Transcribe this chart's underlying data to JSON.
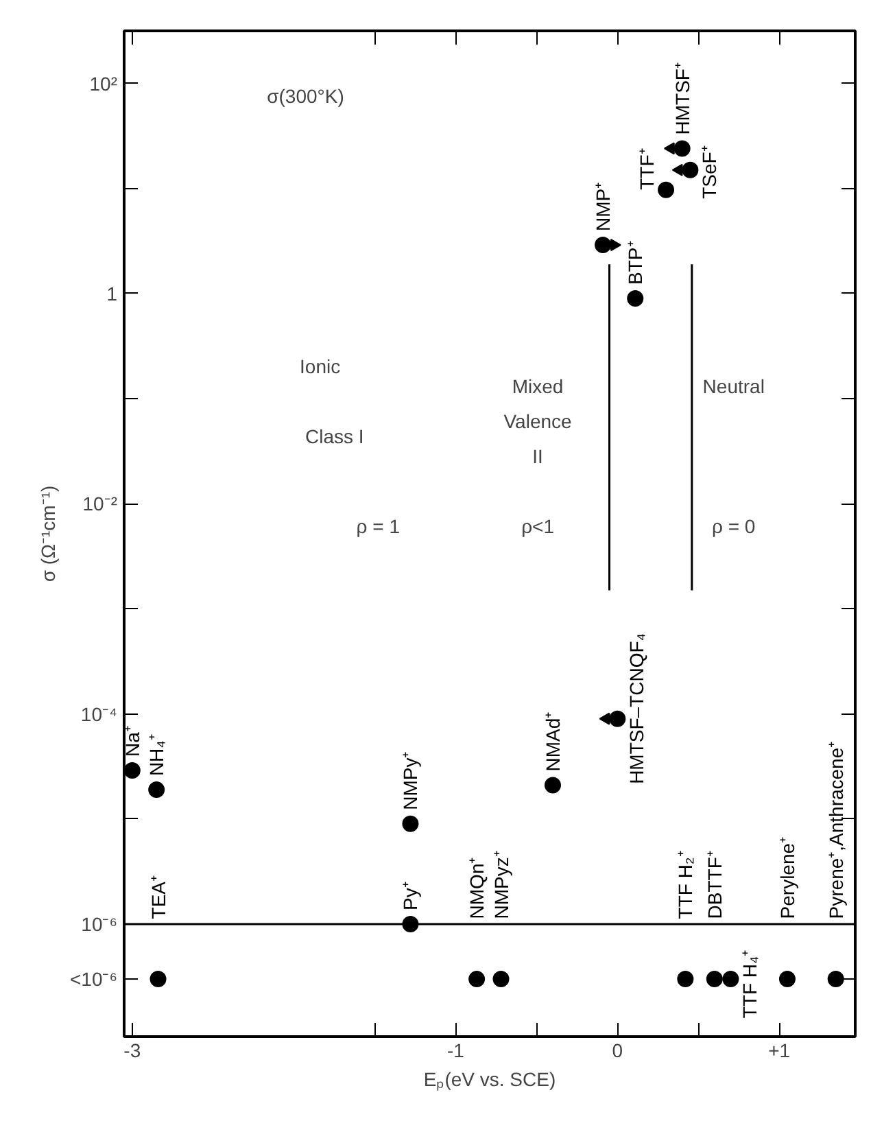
{
  "chart_data": {
    "type": "scatter",
    "xlabel": "Eₚ(eV vs. SCE)",
    "ylabel": "σ (Ω⁻¹cm⁻¹)",
    "log": "y",
    "grid": false,
    "marker": "circle",
    "xlim": [
      -3.05,
      1.47
    ],
    "ylim": [
      8.5e-08,
      316
    ],
    "xticks": [
      {
        "value": -3,
        "label": "-3"
      },
      {
        "value": -1.5,
        "label": null
      },
      {
        "value": -1,
        "label": "-1"
      },
      {
        "value": -0.5,
        "label": null
      },
      0,
      {
        "value": 0.5,
        "label": null
      },
      {
        "value": 1,
        "label": "+1"
      }
    ],
    "yticks": [
      {
        "value": 100,
        "label": "10²"
      },
      {
        "value": 10,
        "label": null
      },
      1,
      {
        "value": 0.1,
        "label": null
      },
      {
        "value": 0.01,
        "label": "10⁻²"
      },
      {
        "value": 0.001,
        "label": null
      },
      {
        "value": 0.0001,
        "label": "10⁻⁴"
      },
      {
        "value": 1e-05,
        "label": null
      },
      {
        "value": 1e-06,
        "label": "10⁻⁶"
      },
      {
        "value": 3e-07,
        "label": "<10⁻⁶"
      }
    ],
    "ref_lines": [
      {
        "axis": "y",
        "value": 1e-06,
        "color": "#000000"
      }
    ],
    "series": [
      {
        "color": "#000000",
        "x": [
          -3,
          -2.85,
          -2.84,
          -1.28,
          -1.28,
          -0.87,
          -0.72,
          -0.4,
          -0.09,
          0.0,
          0.11,
          0.3,
          0.42,
          0.4,
          0.45,
          0.6,
          0.7,
          1.05,
          1.35
        ],
        "values": [
          2.9e-05,
          1.9e-05,
          3e-07,
          9e-06,
          1e-06,
          3e-07,
          3e-07,
          2.1e-05,
          2.9,
          9e-05,
          0.9,
          9.7,
          3e-07,
          24,
          15,
          3e-07,
          3e-07,
          3e-07,
          3e-07
        ],
        "value_labels": [
          "Na⁺",
          "NH₄⁺",
          "TEA⁺",
          "NMPy⁺",
          "Py⁺",
          "NMQn⁺",
          "NMPyz⁺",
          "NMAd⁺",
          "NMP⁺",
          "HMTSF–TCNQF₄",
          "BTP⁺",
          "TTF⁺",
          "TTF H₂⁺",
          "HMTSF⁺",
          "TSeF⁺",
          "DBTTF⁺",
          "TTF H₄⁺",
          "Perylene⁺",
          "Pyrene⁺,Anthracene⁺"
        ]
      },
      {
        "type": "scatter",
        "color": "#000000",
        "marker": "triangle",
        "x": [
          -0.02,
          0.33,
          0.38,
          -0.07
        ],
        "values": [
          2.9,
          24,
          15,
          9e-05
        ]
      },
      {
        "type": "line",
        "color": "#000000",
        "marker": "none",
        "x": [
          -0.05,
          -0.05
        ],
        "values": [
          1.9,
          0.0015
        ]
      },
      {
        "type": "line",
        "color": "#000000",
        "marker": "none",
        "x": [
          0.46,
          0.46
        ],
        "values": [
          1.9,
          0.0015
        ]
      }
    ],
    "annotations": [
      "σ(300°K)",
      "Ionic",
      "Class I",
      "ρ = 1",
      "Mixed",
      "Valence",
      "II",
      "ρ<1",
      "Neutral",
      "ρ = 0"
    ]
  }
}
